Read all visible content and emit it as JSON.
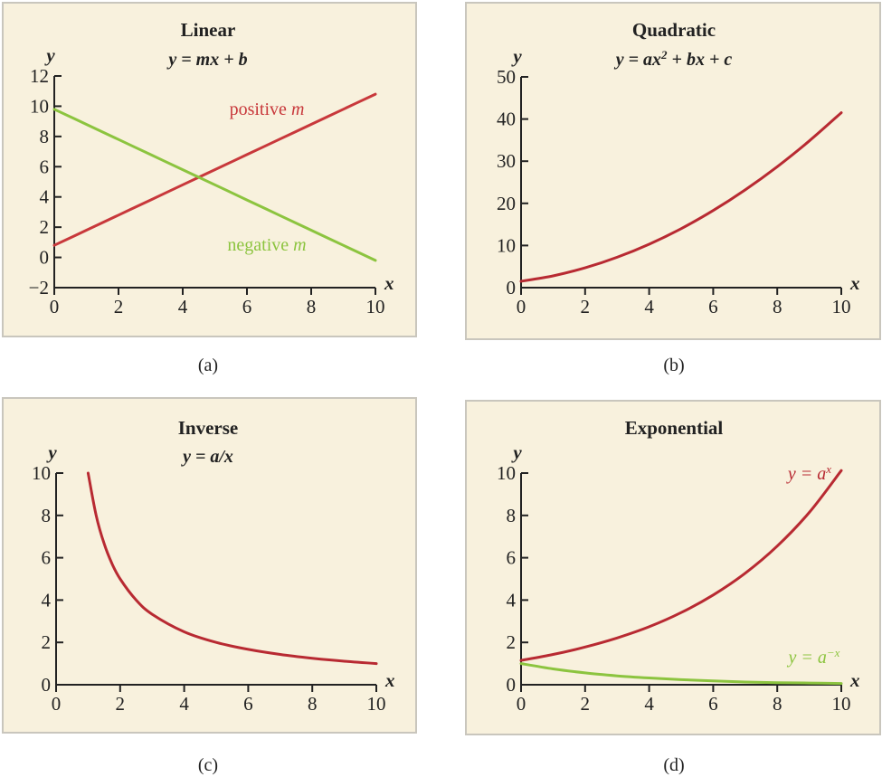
{
  "chart_data": [
    {
      "type": "line",
      "title": "Linear",
      "formula": [
        {
          "t": "y = mx + b"
        }
      ],
      "caption": "(a)",
      "xlabel": "x",
      "ylabel": "y",
      "xlim": [
        0,
        10
      ],
      "ylim": [
        -2,
        12
      ],
      "xticks": [
        0,
        2,
        4,
        6,
        8,
        10
      ],
      "yticks": [
        -2,
        0,
        2,
        4,
        6,
        8,
        10,
        12
      ],
      "ytick_labels": [
        "−2",
        "0",
        "2",
        "4",
        "6",
        "8",
        "10",
        "12"
      ],
      "grid": false,
      "series": [
        {
          "name": "positive m",
          "label_parts": [
            {
              "t": "positive "
            },
            {
              "t": "m",
              "i": true
            }
          ],
          "color": "#c8383b",
          "x": [
            0,
            1,
            2,
            3,
            4,
            5,
            6,
            7,
            8,
            9,
            10
          ],
          "y": [
            0.8,
            1.8,
            2.8,
            3.8,
            4.8,
            5.8,
            6.8,
            7.8,
            8.8,
            9.8,
            10.8
          ]
        },
        {
          "name": "negative m",
          "label_parts": [
            {
              "t": "negative "
            },
            {
              "t": "m",
              "i": true
            }
          ],
          "color": "#8cc43f",
          "x": [
            0,
            1,
            2,
            3,
            4,
            5,
            6,
            7,
            8,
            9,
            10
          ],
          "y": [
            9.8,
            8.8,
            7.8,
            6.8,
            5.8,
            4.8,
            3.8,
            2.8,
            1.8,
            0.8,
            -0.2
          ]
        }
      ]
    },
    {
      "type": "line",
      "title": "Quadratic",
      "formula": [
        {
          "t": "y = ax"
        },
        {
          "t": "2",
          "sup": true
        },
        {
          "t": " + bx + c"
        }
      ],
      "caption": "(b)",
      "xlabel": "x",
      "ylabel": "y",
      "xlim": [
        0,
        10
      ],
      "ylim": [
        0,
        50
      ],
      "xticks": [
        0,
        2,
        4,
        6,
        8,
        10
      ],
      "yticks": [
        0,
        10,
        20,
        30,
        40,
        50
      ],
      "ytick_labels": [
        "0",
        "10",
        "20",
        "30",
        "40",
        "50"
      ],
      "grid": false,
      "series": [
        {
          "color": "#b82a32",
          "x": [
            0,
            1,
            2,
            3,
            4,
            5,
            6,
            7,
            8,
            9,
            10
          ],
          "y": [
            1.5,
            2.8,
            4.7,
            7.2,
            10.3,
            14,
            18.3,
            23.2,
            28.7,
            34.8,
            41.5
          ]
        }
      ]
    },
    {
      "type": "line",
      "title": "Inverse",
      "formula": [
        {
          "t": "y = a/x"
        }
      ],
      "caption": "(c)",
      "xlabel": "x",
      "ylabel": "y",
      "xlim": [
        0,
        10
      ],
      "ylim": [
        0,
        10
      ],
      "xticks": [
        0,
        2,
        4,
        6,
        8,
        10
      ],
      "yticks": [
        0,
        2,
        4,
        6,
        8,
        10
      ],
      "ytick_labels": [
        "0",
        "2",
        "4",
        "6",
        "8",
        "10"
      ],
      "grid": false,
      "series": [
        {
          "color": "#b82a32",
          "x": [
            1,
            1.25,
            1.5,
            1.75,
            2,
            2.5,
            3,
            4,
            5,
            6,
            7,
            8,
            9,
            10
          ],
          "y": [
            10,
            8,
            6.67,
            5.71,
            5,
            4,
            3.33,
            2.5,
            2,
            1.67,
            1.43,
            1.25,
            1.11,
            1
          ]
        }
      ]
    },
    {
      "type": "line",
      "title": "Exponential",
      "formula": [],
      "caption": "(d)",
      "xlabel": "x",
      "ylabel": "y",
      "xlim": [
        0,
        10
      ],
      "ylim": [
        0,
        10
      ],
      "xticks": [
        0,
        2,
        4,
        6,
        8,
        10
      ],
      "yticks": [
        0,
        2,
        4,
        6,
        8,
        10
      ],
      "ytick_labels": [
        "0",
        "2",
        "4",
        "6",
        "8",
        "10"
      ],
      "grid": false,
      "series": [
        {
          "name": "y = a^x",
          "label_parts": [
            {
              "t": "y = a",
              "i": true
            },
            {
              "t": "x",
              "i": true,
              "sup": true
            }
          ],
          "color": "#b82a32",
          "x": [
            0,
            1,
            2,
            3,
            4,
            5,
            6,
            7,
            8,
            9,
            10
          ],
          "y": [
            1.15,
            1.43,
            1.78,
            2.21,
            2.74,
            3.41,
            4.24,
            5.27,
            6.55,
            8.14,
            10.12
          ]
        },
        {
          "name": "y = a^-x",
          "label_parts": [
            {
              "t": "y = a",
              "i": true
            },
            {
              "t": "−x",
              "i": true,
              "sup": true
            }
          ],
          "color": "#8cc43f",
          "x": [
            0,
            1,
            2,
            3,
            4,
            5,
            6,
            7,
            8,
            9,
            10
          ],
          "y": [
            1,
            0.75,
            0.56,
            0.42,
            0.32,
            0.24,
            0.18,
            0.13,
            0.1,
            0.08,
            0.06
          ]
        }
      ]
    }
  ]
}
